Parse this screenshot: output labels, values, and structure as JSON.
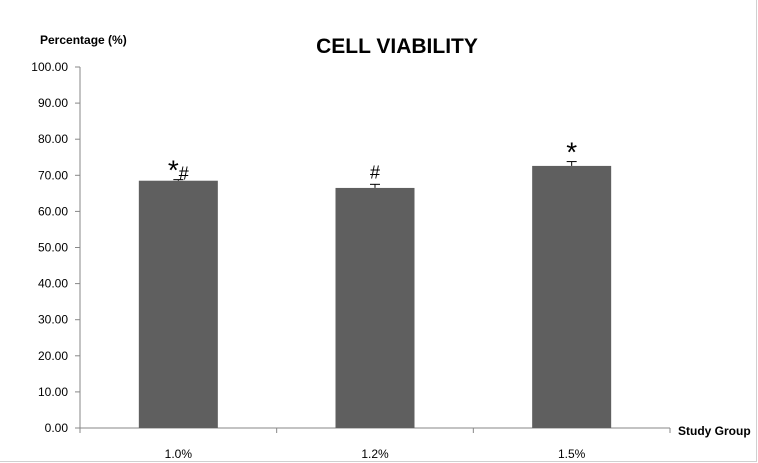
{
  "chart_data": {
    "type": "bar",
    "title": "CELL VIABILITY",
    "ylabel": "Percentage (%)",
    "xlabel": "Study Group",
    "categories": [
      "1.0%",
      "1.2%",
      "1.5%"
    ],
    "values": [
      68.5,
      66.5,
      72.6
    ],
    "errors": [
      0.3,
      1.0,
      1.2
    ],
    "annotations": [
      "*#",
      "#",
      "*"
    ],
    "ylim": [
      0,
      100
    ],
    "yticks": [
      "0.00",
      "10.00",
      "20.00",
      "30.00",
      "40.00",
      "50.00",
      "60.00",
      "70.00",
      "80.00",
      "90.00",
      "100.00"
    ],
    "grid": false,
    "legend": "none",
    "bar_color": "#5f5f5f"
  }
}
